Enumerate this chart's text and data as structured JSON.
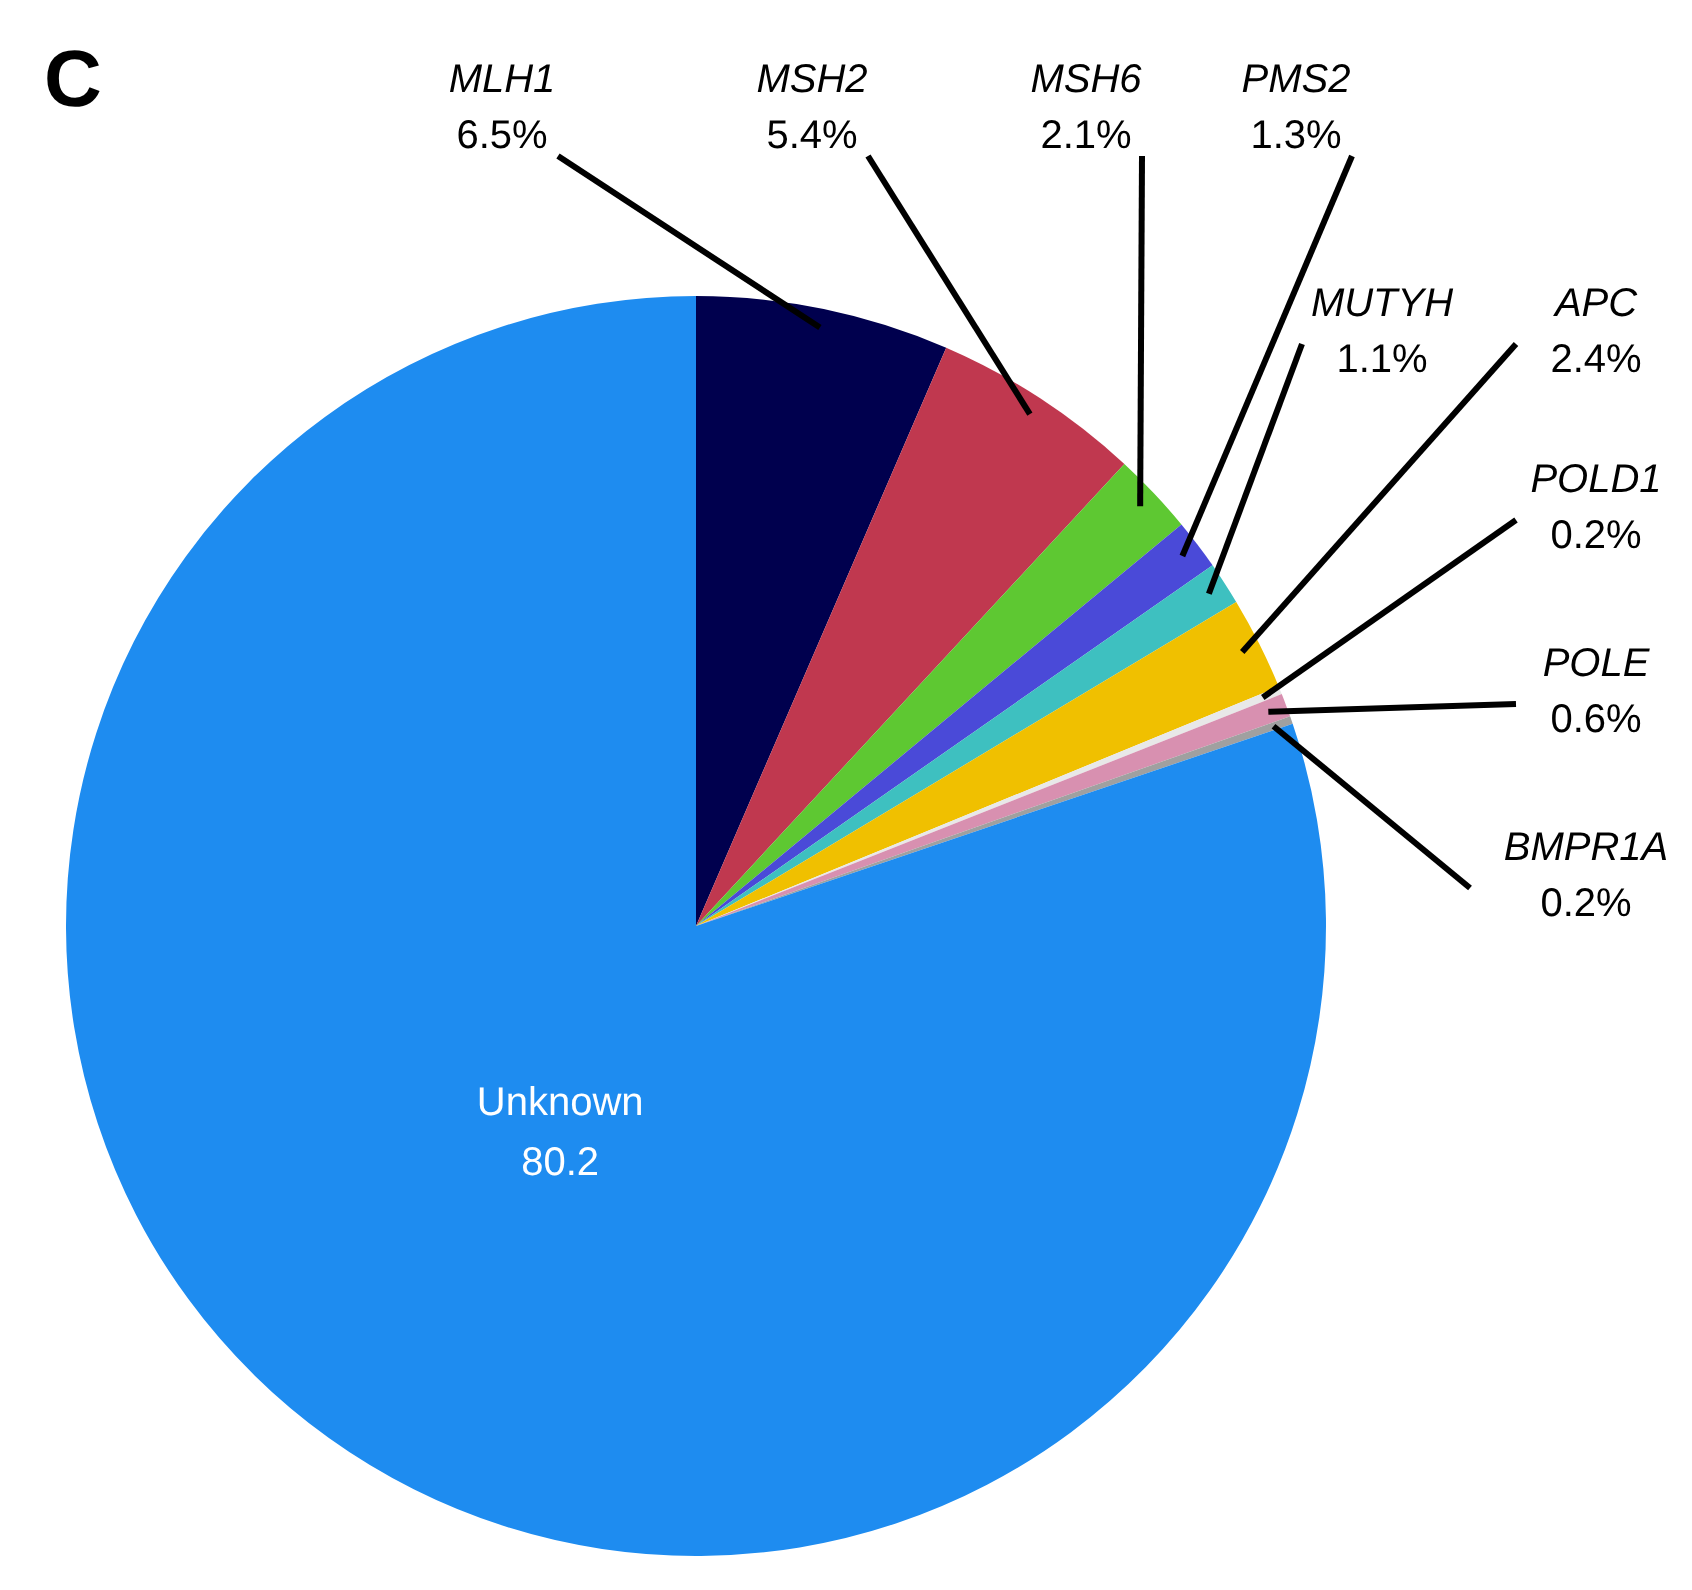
{
  "chart_data": {
    "type": "pie",
    "title": "C",
    "categories": [
      "MLH1",
      "MSH2",
      "MSH6",
      "PMS2",
      "MUTYH",
      "APC",
      "POLD1",
      "POLE",
      "BMPR1A",
      "Unknown"
    ],
    "values": [
      6.5,
      5.4,
      2.1,
      1.3,
      1.1,
      2.4,
      0.2,
      0.6,
      0.2,
      80.2
    ],
    "colors": [
      "#00004e",
      "#c0384f",
      "#5ec832",
      "#4a4ad8",
      "#3ec0c0",
      "#f0c000",
      "#e8e8e8",
      "#d890b0",
      "#a0a0a0",
      "#1e8cf0"
    ],
    "value_labels": [
      "6.5%",
      "5.4%",
      "2.1%",
      "1.3%",
      "1.1%",
      "2.4%",
      "0.2%",
      "0.6%",
      "0.2%",
      "80.2"
    ],
    "legend": false
  }
}
